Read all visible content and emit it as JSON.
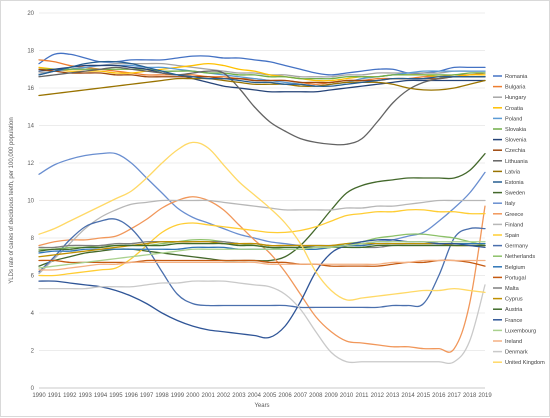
{
  "chart_data": {
    "type": "line",
    "xlabel": "Years",
    "ylabel": "YLDs rate of caries of deciduous teeth, per 100,000 population",
    "ylim": [
      0,
      20
    ],
    "yticks": [
      0,
      2,
      4,
      6,
      8,
      10,
      12,
      14,
      16,
      18,
      20
    ],
    "grid": "horizontal",
    "legend": "right",
    "x": [
      "1990",
      "1991",
      "1992",
      "1993",
      "1994",
      "1995",
      "1996",
      "1997",
      "1998",
      "1999",
      "2000",
      "2001",
      "2002",
      "2003",
      "2004",
      "2005",
      "2006",
      "2007",
      "2008",
      "2009",
      "2010",
      "2011",
      "2012",
      "2013",
      "2014",
      "2015",
      "2016",
      "2017",
      "2018",
      "2019"
    ],
    "series": [
      {
        "name": "Romania",
        "color": "#4472c4",
        "values": [
          17.3,
          17.8,
          17.8,
          17.6,
          17.4,
          17.4,
          17.5,
          17.5,
          17.5,
          17.6,
          17.7,
          17.7,
          17.6,
          17.6,
          17.5,
          17.4,
          17.2,
          17.0,
          16.8,
          16.7,
          16.8,
          16.9,
          17.0,
          17.0,
          16.8,
          16.8,
          16.9,
          17.1,
          17.1,
          17.1
        ]
      },
      {
        "name": "Bulgaria",
        "color": "#ed7d31",
        "values": [
          17.5,
          17.4,
          17.2,
          17.1,
          17.0,
          16.9,
          16.8,
          16.7,
          16.7,
          16.7,
          16.7,
          16.6,
          16.6,
          16.5,
          16.5,
          16.4,
          16.4,
          16.3,
          16.2,
          16.3,
          16.4,
          16.4,
          16.5,
          16.5,
          16.5,
          16.6,
          16.6,
          16.7,
          16.7,
          16.8
        ]
      },
      {
        "name": "Hungary",
        "color": "#a5a5a5",
        "values": [
          16.8,
          16.9,
          17.0,
          17.1,
          17.2,
          17.3,
          17.3,
          17.3,
          17.3,
          17.2,
          17.1,
          17.0,
          16.9,
          16.8,
          16.8,
          16.7,
          16.7,
          16.6,
          16.6,
          16.6,
          16.7,
          16.7,
          16.8,
          16.8,
          16.8,
          16.8,
          16.8,
          16.9,
          16.9,
          16.9
        ]
      },
      {
        "name": "Croatia",
        "color": "#ffc000",
        "values": [
          17.1,
          17.0,
          16.9,
          16.9,
          16.9,
          16.8,
          16.8,
          16.9,
          17.0,
          17.1,
          17.2,
          17.3,
          17.2,
          17.0,
          16.9,
          16.7,
          16.6,
          16.5,
          16.4,
          16.4,
          16.5,
          16.6,
          16.6,
          16.7,
          16.7,
          16.7,
          16.6,
          16.6,
          16.7,
          16.7
        ]
      },
      {
        "name": "Poland",
        "color": "#5b9bd5",
        "values": [
          16.7,
          16.9,
          17.0,
          17.1,
          17.2,
          17.2,
          17.2,
          17.1,
          17.1,
          17.0,
          16.9,
          16.8,
          16.7,
          16.6,
          16.5,
          16.4,
          16.3,
          16.2,
          16.1,
          16.2,
          16.3,
          16.5,
          16.6,
          16.7,
          16.8,
          16.9,
          16.9,
          16.9,
          16.9,
          16.9
        ]
      },
      {
        "name": "Slovakia",
        "color": "#70ad47",
        "values": [
          17.0,
          17.0,
          17.0,
          17.0,
          17.0,
          17.0,
          17.0,
          17.0,
          16.9,
          16.9,
          16.9,
          16.8,
          16.8,
          16.7,
          16.7,
          16.6,
          16.6,
          16.5,
          16.5,
          16.5,
          16.6,
          16.6,
          16.6,
          16.7,
          16.7,
          16.7,
          16.7,
          16.7,
          16.8,
          16.8
        ]
      },
      {
        "name": "Slovenia",
        "color": "#264478",
        "values": [
          16.9,
          17.0,
          17.1,
          17.2,
          17.2,
          17.2,
          17.1,
          17.0,
          16.8,
          16.7,
          16.5,
          16.3,
          16.1,
          16.0,
          15.9,
          15.8,
          15.8,
          15.8,
          15.8,
          15.9,
          16.0,
          16.1,
          16.2,
          16.3,
          16.4,
          16.4,
          16.4,
          16.4,
          16.4,
          16.4
        ]
      },
      {
        "name": "Czechia",
        "color": "#9e480e",
        "values": [
          17.0,
          16.9,
          16.8,
          16.8,
          16.8,
          16.7,
          16.7,
          16.6,
          16.6,
          16.6,
          16.6,
          16.6,
          16.5,
          16.5,
          16.4,
          16.4,
          16.4,
          16.3,
          16.3,
          16.3,
          16.4,
          16.4,
          16.4,
          16.5,
          16.5,
          16.5,
          16.5,
          16.6,
          16.6,
          16.6
        ]
      },
      {
        "name": "Lithuania",
        "color": "#636363",
        "values": [
          16.6,
          16.7,
          16.8,
          16.9,
          17.0,
          17.1,
          17.0,
          16.9,
          16.8,
          16.7,
          16.8,
          16.9,
          16.8,
          16.0,
          15.0,
          14.2,
          13.7,
          13.3,
          13.1,
          13.0,
          13.0,
          13.3,
          14.2,
          15.2,
          15.9,
          16.3,
          16.5,
          16.6,
          16.6,
          16.6
        ]
      },
      {
        "name": "Latvia",
        "color": "#997300",
        "values": [
          15.6,
          15.7,
          15.8,
          15.9,
          16.0,
          16.1,
          16.2,
          16.3,
          16.4,
          16.5,
          16.5,
          16.5,
          16.4,
          16.3,
          16.2,
          16.2,
          16.2,
          16.1,
          16.1,
          16.2,
          16.3,
          16.3,
          16.3,
          16.2,
          16.0,
          15.9,
          15.9,
          16.0,
          16.2,
          16.4
        ]
      },
      {
        "name": "Estonia",
        "color": "#255e91",
        "values": [
          16.7,
          16.9,
          17.1,
          17.3,
          17.4,
          17.4,
          17.3,
          17.1,
          16.9,
          16.7,
          16.6,
          16.5,
          16.5,
          16.4,
          16.3,
          16.3,
          16.2,
          16.2,
          16.1,
          16.1,
          16.2,
          16.3,
          16.4,
          16.5,
          16.5,
          16.5,
          16.6,
          16.6,
          16.6,
          16.6
        ]
      },
      {
        "name": "Sweden",
        "color": "#43682b",
        "values": [
          6.5,
          6.8,
          7.0,
          7.2,
          7.3,
          7.4,
          7.4,
          7.3,
          7.2,
          7.1,
          7.0,
          6.9,
          6.8,
          6.8,
          6.8,
          6.8,
          7.0,
          7.6,
          8.5,
          9.5,
          10.4,
          10.8,
          11.0,
          11.1,
          11.2,
          11.2,
          11.2,
          11.2,
          11.6,
          12.5
        ]
      },
      {
        "name": "Italy",
        "color": "#698ed0",
        "values": [
          11.4,
          11.9,
          12.2,
          12.4,
          12.5,
          12.5,
          12.0,
          11.2,
          10.4,
          9.6,
          9.1,
          8.8,
          8.5,
          8.2,
          8.0,
          7.8,
          7.7,
          7.6,
          7.6,
          7.6,
          7.6,
          7.7,
          7.8,
          7.9,
          8.1,
          8.3,
          8.9,
          9.6,
          10.4,
          11.5
        ]
      },
      {
        "name": "Greece",
        "color": "#f1975a",
        "values": [
          7.6,
          7.8,
          7.9,
          7.9,
          8.0,
          8.1,
          8.5,
          9.0,
          9.6,
          10.0,
          10.2,
          10.0,
          9.5,
          8.7,
          7.9,
          7.2,
          6.2,
          5.0,
          3.8,
          3.0,
          2.5,
          2.4,
          2.3,
          2.2,
          2.2,
          2.1,
          2.1,
          2.1,
          4.5,
          9.7
        ]
      },
      {
        "name": "Finland",
        "color": "#b7b7b7",
        "values": [
          6.1,
          6.9,
          7.7,
          8.5,
          9.1,
          9.5,
          9.8,
          9.9,
          10.0,
          10.0,
          10.0,
          10.0,
          9.9,
          9.8,
          9.7,
          9.6,
          9.5,
          9.5,
          9.5,
          9.5,
          9.6,
          9.6,
          9.7,
          9.7,
          9.8,
          9.9,
          10.0,
          10.0,
          10.0,
          10.0
        ]
      },
      {
        "name": "Spain",
        "color": "#ffcd33",
        "values": [
          6.0,
          6.0,
          6.1,
          6.2,
          6.3,
          6.4,
          6.9,
          7.6,
          8.3,
          8.7,
          8.8,
          8.7,
          8.6,
          8.5,
          8.4,
          8.3,
          8.3,
          8.4,
          8.6,
          8.9,
          9.2,
          9.3,
          9.4,
          9.4,
          9.5,
          9.5,
          9.4,
          9.4,
          9.3,
          9.3
        ]
      },
      {
        "name": "Germany",
        "color": "#4a6fad",
        "values": [
          6.2,
          7.0,
          7.9,
          8.6,
          8.9,
          9.0,
          8.5,
          7.5,
          6.2,
          5.0,
          4.5,
          4.4,
          4.4,
          4.4,
          4.4,
          4.4,
          4.4,
          4.3,
          4.3,
          4.3,
          4.3,
          4.3,
          4.3,
          4.4,
          4.4,
          4.5,
          6.0,
          8.0,
          8.5,
          8.5
        ]
      },
      {
        "name": "Netherlands",
        "color": "#8cc168",
        "values": [
          7.4,
          7.4,
          7.5,
          7.5,
          7.6,
          7.6,
          7.6,
          7.6,
          7.7,
          7.8,
          7.9,
          7.9,
          7.8,
          7.7,
          7.6,
          7.5,
          7.4,
          7.4,
          7.4,
          7.5,
          7.7,
          7.8,
          8.0,
          8.1,
          8.2,
          8.2,
          8.1,
          8.0,
          7.8,
          7.6
        ]
      },
      {
        "name": "Belgium",
        "color": "#2e75b6",
        "values": [
          7.2,
          7.3,
          7.3,
          7.4,
          7.4,
          7.4,
          7.4,
          7.4,
          7.4,
          7.4,
          7.5,
          7.5,
          7.5,
          7.4,
          7.4,
          7.4,
          7.4,
          7.4,
          7.4,
          7.5,
          7.6,
          7.6,
          7.7,
          7.7,
          7.7,
          7.7,
          7.7,
          7.7,
          7.7,
          7.7
        ]
      },
      {
        "name": "Portugal",
        "color": "#c55a11",
        "values": [
          6.8,
          6.8,
          6.7,
          6.7,
          6.7,
          6.7,
          6.7,
          6.8,
          6.8,
          6.8,
          6.8,
          6.8,
          6.8,
          6.8,
          6.8,
          6.7,
          6.7,
          6.6,
          6.6,
          6.5,
          6.5,
          6.5,
          6.5,
          6.6,
          6.7,
          6.7,
          6.8,
          6.8,
          6.7,
          6.5
        ]
      },
      {
        "name": "Malta",
        "color": "#7f7f7f",
        "values": [
          7.5,
          7.5,
          7.6,
          7.6,
          7.6,
          7.7,
          7.7,
          7.8,
          7.8,
          7.8,
          7.8,
          7.8,
          7.8,
          7.7,
          7.7,
          7.6,
          7.6,
          7.6,
          7.5,
          7.5,
          7.5,
          7.5,
          7.5,
          7.6,
          7.6,
          7.6,
          7.6,
          7.6,
          7.6,
          7.6
        ]
      },
      {
        "name": "Cyprus",
        "color": "#bf9000",
        "values": [
          7.0,
          7.1,
          7.2,
          7.3,
          7.4,
          7.5,
          7.6,
          7.7,
          7.8,
          7.8,
          7.8,
          7.8,
          7.7,
          7.7,
          7.7,
          7.6,
          7.6,
          7.6,
          7.6,
          7.6,
          7.7,
          7.7,
          7.7,
          7.7,
          7.7,
          7.7,
          7.7,
          7.6,
          7.6,
          7.6
        ]
      },
      {
        "name": "Austria",
        "color": "#3f6b2a",
        "values": [
          7.3,
          7.4,
          7.4,
          7.5,
          7.5,
          7.6,
          7.6,
          7.6,
          7.6,
          7.7,
          7.7,
          7.7,
          7.7,
          7.6,
          7.6,
          7.5,
          7.5,
          7.5,
          7.5,
          7.5,
          7.5,
          7.5,
          7.6,
          7.6,
          7.6,
          7.6,
          7.6,
          7.6,
          7.6,
          7.6
        ]
      },
      {
        "name": "France",
        "color": "#2f5597",
        "values": [
          5.7,
          5.7,
          5.6,
          5.5,
          5.4,
          5.2,
          4.9,
          4.5,
          4.0,
          3.6,
          3.3,
          3.1,
          3.0,
          2.9,
          2.8,
          2.7,
          3.3,
          4.6,
          6.2,
          7.2,
          7.6,
          7.8,
          7.9,
          7.9,
          7.8,
          7.8,
          7.7,
          7.7,
          7.6,
          7.5
        ]
      },
      {
        "name": "Luxembourg",
        "color": "#a9d18e",
        "values": [
          6.4,
          6.5,
          6.6,
          6.7,
          6.8,
          6.9,
          7.0,
          7.1,
          7.2,
          7.3,
          7.4,
          7.4,
          7.4,
          7.4,
          7.4,
          7.4,
          7.4,
          7.4,
          7.5,
          7.5,
          7.6,
          7.7,
          7.8,
          7.8,
          7.8,
          7.8,
          7.8,
          7.8,
          7.8,
          7.8
        ]
      },
      {
        "name": "Ireland",
        "color": "#f4b183",
        "values": [
          6.3,
          6.3,
          6.4,
          6.5,
          6.6,
          6.6,
          6.7,
          6.7,
          6.7,
          6.7,
          6.7,
          6.7,
          6.7,
          6.7,
          6.7,
          6.6,
          6.6,
          6.6,
          6.6,
          6.6,
          6.6,
          6.6,
          6.6,
          6.7,
          6.7,
          6.8,
          6.8,
          6.8,
          6.8,
          6.8
        ]
      },
      {
        "name": "Denmark",
        "color": "#c9c9c9",
        "values": [
          5.3,
          5.3,
          5.3,
          5.3,
          5.4,
          5.4,
          5.4,
          5.5,
          5.6,
          5.6,
          5.7,
          5.7,
          5.7,
          5.6,
          5.5,
          5.4,
          5.0,
          4.2,
          3.0,
          1.9,
          1.4,
          1.4,
          1.4,
          1.4,
          1.4,
          1.4,
          1.4,
          1.4,
          2.5,
          5.5
        ]
      },
      {
        "name": "United Kingdom",
        "color": "#ffd966",
        "values": [
          8.2,
          8.5,
          8.9,
          9.3,
          9.7,
          10.1,
          10.5,
          11.2,
          12.0,
          12.7,
          13.1,
          12.8,
          11.9,
          11.0,
          10.3,
          9.6,
          8.8,
          7.7,
          6.2,
          5.2,
          4.7,
          4.8,
          4.9,
          5.0,
          5.1,
          5.2,
          5.2,
          5.3,
          5.2,
          5.1
        ]
      }
    ]
  }
}
